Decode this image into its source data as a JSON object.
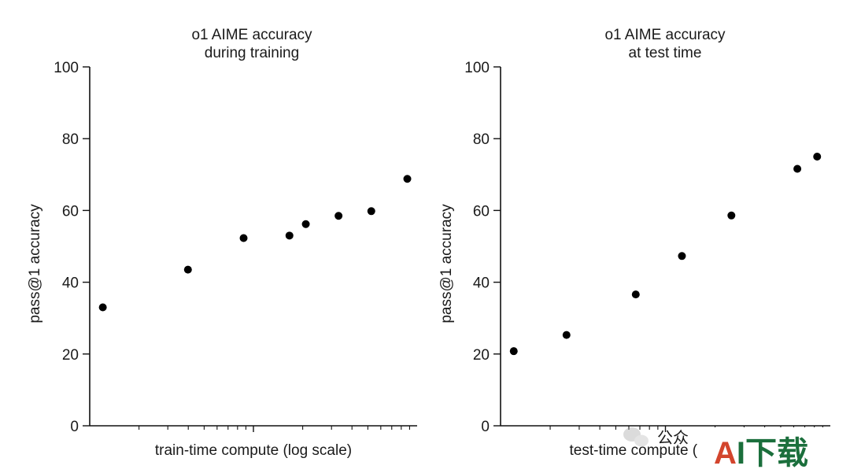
{
  "chart_data": [
    {
      "type": "scatter",
      "title": [
        "o1 AIME accuracy",
        "during training"
      ],
      "xlabel": "train-time compute (log scale)",
      "ylabel": "pass@1 accuracy",
      "xscale": "log",
      "ylim": [
        0,
        100
      ],
      "yticks": [
        0,
        20,
        40,
        60,
        80,
        100
      ],
      "grid": false,
      "points": [
        {
          "x": 0.04,
          "y": 33
        },
        {
          "x": 0.3,
          "y": 43.5
        },
        {
          "x": 0.47,
          "y": 52.3
        },
        {
          "x": 0.61,
          "y": 53
        },
        {
          "x": 0.66,
          "y": 56.2
        },
        {
          "x": 0.76,
          "y": 58.5
        },
        {
          "x": 0.86,
          "y": 59.8
        },
        {
          "x": 0.97,
          "y": 68.8
        }
      ]
    },
    {
      "type": "scatter",
      "title": [
        "o1 AIME accuracy",
        "at test time"
      ],
      "xlabel": "test-time compute (log scale)",
      "ylabel": "pass@1 accuracy",
      "xscale": "log",
      "ylim": [
        0,
        100
      ],
      "yticks": [
        0,
        20,
        40,
        60,
        80,
        100
      ],
      "grid": false,
      "points": [
        {
          "x": 0.04,
          "y": 20.8
        },
        {
          "x": 0.2,
          "y": 25.3
        },
        {
          "x": 0.41,
          "y": 36.6
        },
        {
          "x": 0.55,
          "y": 47.3
        },
        {
          "x": 0.7,
          "y": 58.6
        },
        {
          "x": 0.9,
          "y": 71.6
        },
        {
          "x": 0.96,
          "y": 75
        }
      ]
    }
  ],
  "watermark": {
    "wechat_text": "公众",
    "logo_text": "AI下载",
    "colors": {
      "logo_a": "#d3452d",
      "logo_rest": "#1b6f3c"
    }
  }
}
